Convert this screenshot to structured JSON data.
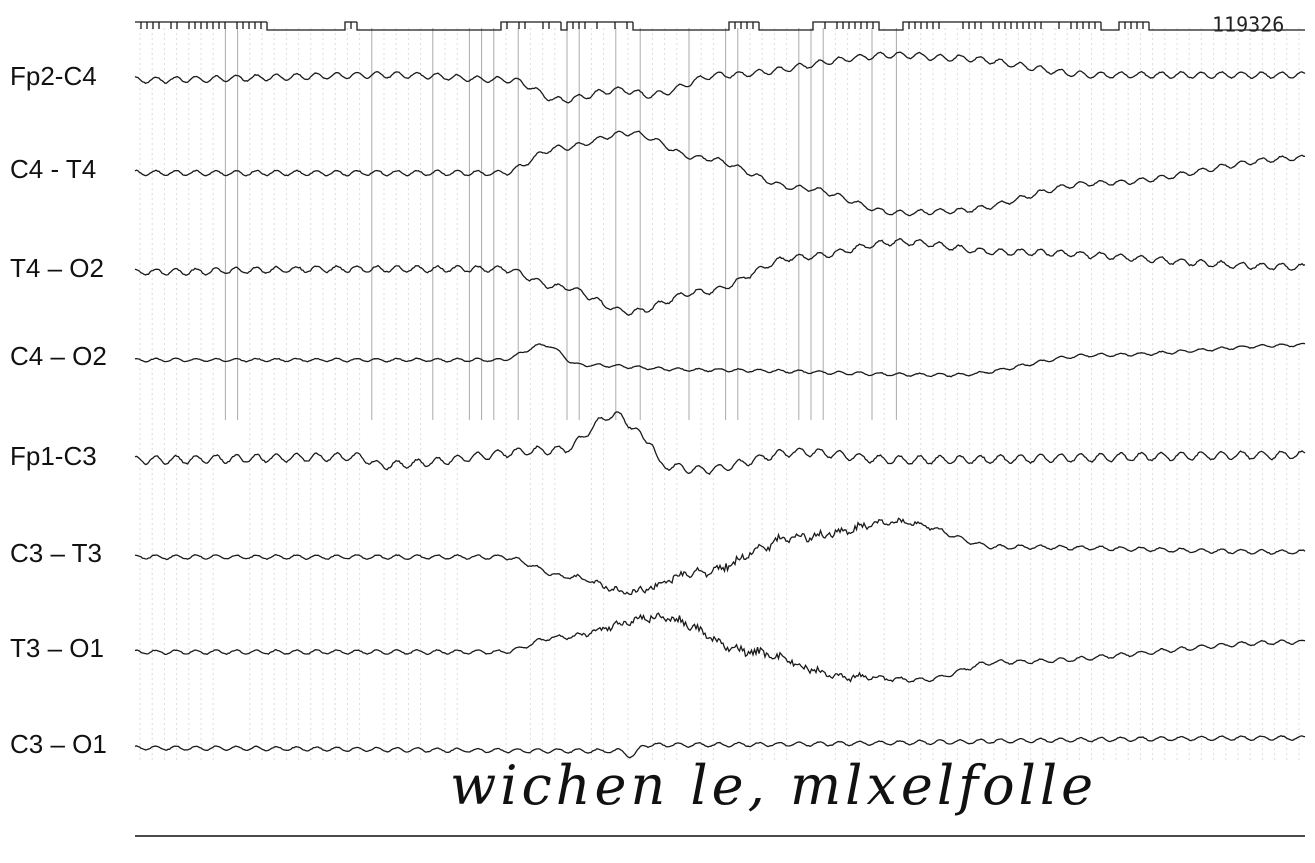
{
  "header": {
    "record_number": "119326"
  },
  "channels": [
    {
      "label": "Fp2-C4"
    },
    {
      "label": "C4 - T4"
    },
    {
      "label": "T4 – O2"
    },
    {
      "label": "C4 – O2"
    },
    {
      "label": "Fp1-C3"
    },
    {
      "label": "C3 – T3"
    },
    {
      "label": "T3 – O1"
    },
    {
      "label": "C3 – O1"
    }
  ],
  "annotation": "wichen le, mlxelfolle"
}
